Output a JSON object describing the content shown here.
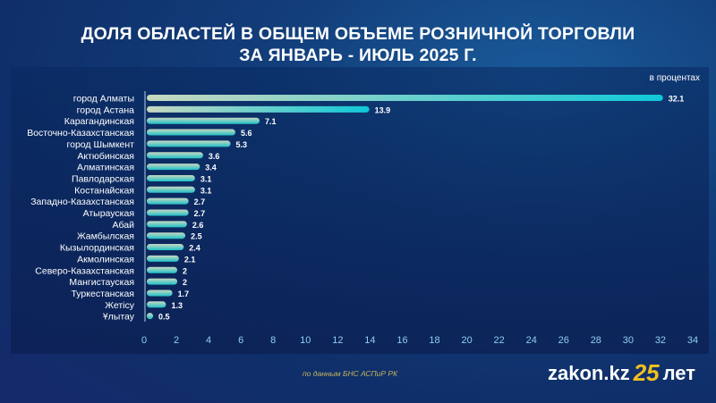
{
  "chart_data": {
    "type": "bar",
    "orientation": "horizontal",
    "title_line1": "ДОЛЯ ОБЛАСТЕЙ В ОБЩЕМ ОБЪЕМЕ РОЗНИЧНОЙ ТОРГОВЛИ",
    "title_line2": "ЗА ЯНВАРЬ - ИЮЛЬ 2025 Г.",
    "unit_label": "в процентах",
    "categories": [
      "город Алматы",
      "город Астана",
      "Карагандинская",
      "Восточно-Казахстанская",
      "город Шымкент",
      "Актюбинская",
      "Алматинская",
      "Павлодарская",
      "Костанайская",
      "Западно-Казахстанская",
      "Атырауская",
      "Абай",
      "Жамбылская",
      "Кызылординская",
      "Акмолинская",
      "Северо-Казахстанская",
      "Мангистауская",
      "Туркестанская",
      "Жетісу",
      "Ұлытау"
    ],
    "values": [
      32.1,
      13.9,
      7.1,
      5.6,
      5.3,
      3.6,
      3.4,
      3.1,
      3.1,
      2.7,
      2.7,
      2.6,
      2.5,
      2.4,
      2.1,
      2,
      2,
      1.7,
      1.3,
      0.5
    ],
    "xlim": [
      0,
      34
    ],
    "xticks": [
      "0",
      "2",
      "4",
      "6",
      "8",
      "10",
      "12",
      "14",
      "16",
      "18",
      "20",
      "22",
      "24",
      "26",
      "28",
      "30",
      "32",
      "34"
    ],
    "grid": false
  },
  "footer": {
    "source": "по данным БНС АСПиР РК",
    "logo_text": "zakon.kz",
    "logo_number": "25",
    "logo_suffix": "лет"
  },
  "colors": {
    "bar_top": "#c8d8c0",
    "bar_bottom": "#1fc0c8",
    "tick": "#8fd0f0"
  }
}
